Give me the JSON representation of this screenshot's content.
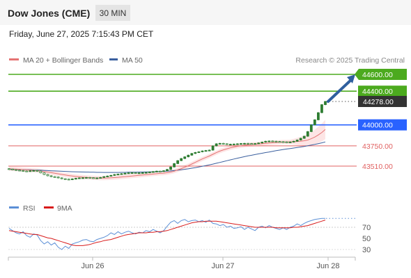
{
  "header": {
    "title": "Dow Jones (CME)",
    "timeframe": "30 MIN",
    "datetime": "Friday, June 27, 2025 7:15:43 PM CET"
  },
  "source": "Research © 2025 Trading Central",
  "colors": {
    "green_level": "#4caa1e",
    "blue_level": "#2962ff",
    "red_level": "#e06060",
    "price_box": "#333333",
    "candle": "#2e7d32",
    "ma20": "#e57373",
    "ma50": "#3a5f9e",
    "band_fill": "#fde0e0",
    "arrow": "#2f5f9e",
    "rsi": "#5b8fd6",
    "rsi_ma": "#d81b1b"
  },
  "chart_data": [
    {
      "type": "candlestick",
      "title": "Dow Jones (CME)",
      "timeframe": "30 MIN",
      "legend": [
        {
          "name": "MA 20 + Bollinger Bands",
          "color": "#e57373"
        },
        {
          "name": "MA 50",
          "color": "#3a5f9e"
        }
      ],
      "legend_position": "top-left",
      "x_ticks": [
        "Jun 26",
        "Jun 27",
        "Jun 28"
      ],
      "ylim": [
        43350,
        44720
      ],
      "levels": [
        {
          "label": "44600.00",
          "value": 44600,
          "type": "target",
          "color": "#4caa1e"
        },
        {
          "label": "44400.00",
          "value": 44400,
          "type": "resistance",
          "color": "#4caa1e"
        },
        {
          "label": "44278.00",
          "value": 44278,
          "type": "last-price",
          "color": "#333333"
        },
        {
          "label": "44000.00",
          "value": 44000,
          "type": "pivot",
          "color": "#2962ff"
        },
        {
          "label": "43750.00",
          "value": 43750,
          "type": "support",
          "color": "#e06060"
        },
        {
          "label": "43510.00",
          "value": 43510,
          "type": "support",
          "color": "#e06060"
        }
      ],
      "close": [
        43475,
        43468,
        43462,
        43458,
        43452,
        43450,
        43455,
        43458,
        43450,
        43430,
        43410,
        43395,
        43385,
        43380,
        43370,
        43360,
        43355,
        43350,
        43358,
        43365,
        43370,
        43372,
        43375,
        43372,
        43368,
        43370,
        43375,
        43385,
        43392,
        43400,
        43410,
        43415,
        43420,
        43425,
        43430,
        43432,
        43428,
        43430,
        43432,
        43435,
        43440,
        43445,
        43450,
        43448,
        43455,
        43470,
        43500,
        43540,
        43575,
        43600,
        43620,
        43640,
        43660,
        43672,
        43680,
        43690,
        43695,
        43700,
        43750,
        43775,
        43780,
        43775,
        43770,
        43770,
        43772,
        43775,
        43778,
        43780,
        43778,
        43775,
        43778,
        43785,
        43795,
        43805,
        43808,
        43805,
        43802,
        43800,
        43798,
        43795,
        43797,
        43805,
        43820,
        43840,
        43865,
        43920,
        44000,
        44060,
        44145,
        44240,
        44278
      ],
      "ma20": [
        43478,
        43476,
        43474,
        43472,
        43468,
        43465,
        43462,
        43460,
        43457,
        43452,
        43446,
        43439,
        43432,
        43425,
        43418,
        43411,
        43404,
        43398,
        43392,
        43387,
        43383,
        43379,
        43376,
        43373,
        43371,
        43369,
        43368,
        43368,
        43369,
        43371,
        43374,
        43377,
        43381,
        43385,
        43389,
        43393,
        43397,
        43400,
        43404,
        43408,
        43412,
        43416,
        43420,
        43424,
        43427,
        43432,
        43440,
        43450,
        43465,
        43480,
        43497,
        43515,
        43535,
        43555,
        43575,
        43595,
        43612,
        43630,
        43650,
        43670,
        43688,
        43703,
        43716,
        43727,
        43737,
        43745,
        43752,
        43758,
        43763,
        43767,
        43770,
        43773,
        43776,
        43780,
        43784,
        43788,
        43791,
        43794,
        43796,
        43797,
        43798,
        43800,
        43802,
        43806,
        43811,
        43820,
        43835,
        43855,
        43880,
        43910,
        43945
      ],
      "ma50": [
        43472,
        43471,
        43470,
        43469,
        43468,
        43467,
        43466,
        43464,
        43463,
        43461,
        43459,
        43457,
        43455,
        43453,
        43451,
        43449,
        43447,
        43445,
        43443,
        43442,
        43441,
        43440,
        43439,
        43438,
        43437,
        43436,
        43436,
        43435,
        43435,
        43435,
        43435,
        43435,
        43436,
        43436,
        43437,
        43437,
        43438,
        43439,
        43440,
        43441,
        43442,
        43443,
        43444,
        43446,
        43448,
        43450,
        43453,
        43457,
        43461,
        43466,
        43472,
        43478,
        43485,
        43492,
        43500,
        43508,
        43516,
        43525,
        43534,
        43544,
        43554,
        43564,
        43574,
        43584,
        43594,
        43604,
        43613,
        43622,
        43631,
        43639,
        43647,
        43655,
        43663,
        43671,
        43678,
        43686,
        43693,
        43700,
        43707,
        43713,
        43719,
        43725,
        43731,
        43737,
        43743,
        43751,
        43759,
        43768,
        43777,
        43787,
        43797
      ]
    },
    {
      "type": "line",
      "title": "RSI",
      "legend": [
        {
          "name": "RSI",
          "color": "#5b8fd6"
        },
        {
          "name": "9MA",
          "color": "#d81b1b"
        }
      ],
      "y_ticks": [
        70,
        50,
        30
      ],
      "ylim": [
        15,
        85
      ],
      "rsi": [
        68,
        64,
        60,
        58,
        62,
        55,
        52,
        58,
        56,
        46,
        40,
        44,
        38,
        42,
        34,
        30,
        36,
        32,
        40,
        42,
        44,
        47,
        48,
        45,
        44,
        48,
        50,
        52,
        55,
        60,
        57,
        62,
        58,
        61,
        63,
        60,
        58,
        61,
        60,
        64,
        62,
        66,
        63,
        60,
        64,
        72,
        79,
        82,
        77,
        82,
        84,
        80,
        82,
        83,
        80,
        82,
        79,
        83,
        77,
        76,
        73,
        75,
        70,
        72,
        68,
        69,
        71,
        66,
        70,
        67,
        64,
        70,
        72,
        69,
        73,
        70,
        68,
        66,
        69,
        66,
        70,
        72,
        76,
        73,
        77,
        80,
        82,
        84,
        85,
        86,
        86
      ],
      "ma9": [
        64,
        63,
        62,
        61,
        60,
        59,
        58,
        57,
        57,
        55,
        53,
        51,
        50,
        48,
        46,
        44,
        42,
        40,
        38,
        37,
        37,
        37,
        38,
        39,
        41,
        43,
        44,
        46,
        47,
        48,
        50,
        52,
        54,
        56,
        57,
        58,
        59,
        60,
        60,
        60,
        61,
        61,
        62,
        62,
        63,
        64,
        66,
        68,
        70,
        72,
        74,
        76,
        78,
        79,
        80,
        80,
        81,
        81,
        81,
        81,
        80,
        79,
        78,
        77,
        76,
        75,
        74,
        73,
        72,
        71,
        70,
        70,
        70,
        70,
        70,
        70,
        69,
        69,
        69,
        69,
        69,
        70,
        70,
        71,
        72,
        73,
        75,
        77,
        79,
        81,
        83
      ]
    }
  ]
}
